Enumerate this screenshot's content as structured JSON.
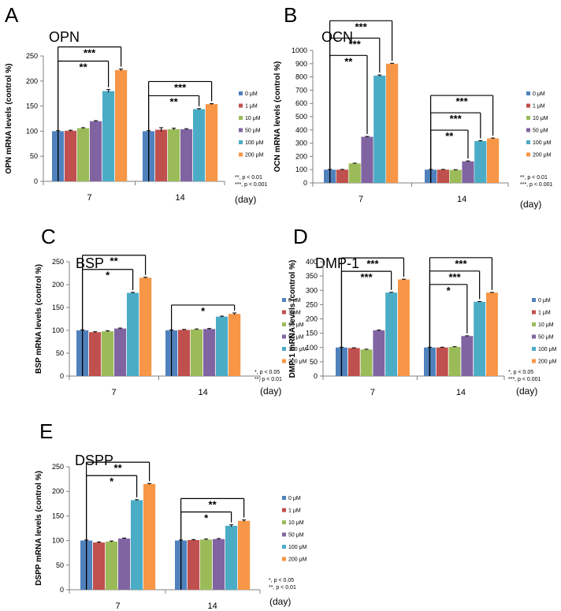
{
  "day_label": "(day)",
  "colors": [
    "#4F81BD",
    "#C0504D",
    "#9BBB59",
    "#8064A2",
    "#4BACC6",
    "#F79646"
  ],
  "chart_data": [
    {
      "type": "bar",
      "panel": "A",
      "title": "OPN",
      "ylabel": "OPN mRNA levels (control %)",
      "xlabel": "(day)",
      "ylim": [
        0,
        250
      ],
      "yticks": [
        0,
        50,
        100,
        150,
        200,
        250
      ],
      "categories": [
        "7",
        "14"
      ],
      "series": [
        {
          "name": "0 μM",
          "values": [
            100,
            100
          ],
          "errors": [
            1,
            1
          ]
        },
        {
          "name": "1 μM",
          "values": [
            101,
            103
          ],
          "errors": [
            1,
            4
          ]
        },
        {
          "name": "10 μM",
          "values": [
            106,
            104
          ],
          "errors": [
            1,
            2
          ]
        },
        {
          "name": "50 μM",
          "values": [
            120,
            104
          ],
          "errors": [
            1,
            1
          ]
        },
        {
          "name": "100 μM",
          "values": [
            180,
            144
          ],
          "errors": [
            3,
            1
          ]
        },
        {
          "name": "200 μM",
          "values": [
            222,
            154
          ],
          "errors": [
            2,
            1
          ]
        }
      ],
      "significance": [
        {
          "group": 0,
          "from": 0,
          "to": 5,
          "label": "***"
        },
        {
          "group": 0,
          "from": 0,
          "to": 4,
          "label": "**"
        },
        {
          "group": 1,
          "from": 0,
          "to": 5,
          "label": "***"
        },
        {
          "group": 1,
          "from": 0,
          "to": 4,
          "label": "**"
        }
      ],
      "notes": [
        "**, p < 0.01",
        "***, p < 0.001"
      ]
    },
    {
      "type": "bar",
      "panel": "B",
      "title": "OCN",
      "ylabel": "OCN mRNA levels (control %)",
      "xlabel": "(day)",
      "ylim": [
        0,
        1000
      ],
      "yticks": [
        0,
        100,
        200,
        300,
        400,
        500,
        600,
        700,
        800,
        900,
        1000
      ],
      "categories": [
        "7",
        "14"
      ],
      "series": [
        {
          "name": "0 μM",
          "values": [
            100,
            100
          ],
          "errors": [
            2,
            2
          ]
        },
        {
          "name": "1 μM",
          "values": [
            100,
            100
          ],
          "errors": [
            2,
            2
          ]
        },
        {
          "name": "10 μM",
          "values": [
            147,
            98
          ],
          "errors": [
            2,
            2
          ]
        },
        {
          "name": "50 μM",
          "values": [
            348,
            163
          ],
          "errors": [
            3,
            3
          ]
        },
        {
          "name": "100 μM",
          "values": [
            810,
            316
          ],
          "errors": [
            5,
            3
          ]
        },
        {
          "name": "200 μM",
          "values": [
            900,
            336
          ],
          "errors": [
            3,
            3
          ]
        }
      ],
      "significance": [
        {
          "group": 0,
          "from": 0,
          "to": 5,
          "label": "***"
        },
        {
          "group": 0,
          "from": 0,
          "to": 4,
          "label": "***"
        },
        {
          "group": 0,
          "from": 0,
          "to": 3,
          "label": "**"
        },
        {
          "group": 1,
          "from": 0,
          "to": 5,
          "label": "***"
        },
        {
          "group": 1,
          "from": 0,
          "to": 4,
          "label": "***"
        },
        {
          "group": 1,
          "from": 0,
          "to": 3,
          "label": "**"
        }
      ],
      "notes": [
        "**, p < 0.01",
        "***, p < 0.001"
      ]
    },
    {
      "type": "bar",
      "panel": "C",
      "title": "BSP",
      "ylabel": "BSP mRNA levels (control %)",
      "xlabel": "(day)",
      "ylim": [
        0,
        250
      ],
      "yticks": [
        0,
        50,
        100,
        150,
        200,
        250
      ],
      "categories": [
        "7",
        "14"
      ],
      "series": [
        {
          "name": "0 μM",
          "values": [
            100,
            100
          ],
          "errors": [
            1,
            1
          ]
        },
        {
          "name": "1 μM",
          "values": [
            96,
            101
          ],
          "errors": [
            1,
            1
          ]
        },
        {
          "name": "10 μM",
          "values": [
            98,
            102
          ],
          "errors": [
            1,
            1
          ]
        },
        {
          "name": "50 μM",
          "values": [
            104,
            103
          ],
          "errors": [
            1,
            1
          ]
        },
        {
          "name": "100 μM",
          "values": [
            182,
            130
          ],
          "errors": [
            1,
            1
          ]
        },
        {
          "name": "200 μM",
          "values": [
            215,
            136
          ],
          "errors": [
            1,
            2
          ]
        }
      ],
      "significance": [
        {
          "group": 0,
          "from": 0,
          "to": 5,
          "label": "**"
        },
        {
          "group": 0,
          "from": 0,
          "to": 4,
          "label": "*"
        },
        {
          "group": 1,
          "from": 0,
          "to": 5,
          "label": "*"
        }
      ],
      "notes": [
        "*, p < 0.05",
        "**, p < 0.01"
      ]
    },
    {
      "type": "bar",
      "panel": "D",
      "title": "DMP-1",
      "ylabel": "DMP-1 mRNA levels (control %)",
      "xlabel": "(day)",
      "ylim": [
        0,
        400
      ],
      "yticks": [
        0,
        50,
        100,
        150,
        200,
        250,
        300,
        350,
        400
      ],
      "categories": [
        "7",
        "14"
      ],
      "series": [
        {
          "name": "0 μM",
          "values": [
            100,
            100
          ],
          "errors": [
            1,
            1
          ]
        },
        {
          "name": "1 μM",
          "values": [
            98,
            100
          ],
          "errors": [
            1,
            1
          ]
        },
        {
          "name": "10 μM",
          "values": [
            93,
            102
          ],
          "errors": [
            1,
            1
          ]
        },
        {
          "name": "50 μM",
          "values": [
            160,
            140
          ],
          "errors": [
            1,
            1
          ]
        },
        {
          "name": "100 μM",
          "values": [
            292,
            260
          ],
          "errors": [
            1,
            1
          ]
        },
        {
          "name": "200 μM",
          "values": [
            338,
            292
          ],
          "errors": [
            1,
            1
          ]
        }
      ],
      "significance": [
        {
          "group": 0,
          "from": 0,
          "to": 5,
          "label": "***"
        },
        {
          "group": 0,
          "from": 0,
          "to": 4,
          "label": "***"
        },
        {
          "group": 1,
          "from": 0,
          "to": 5,
          "label": "***"
        },
        {
          "group": 1,
          "from": 0,
          "to": 4,
          "label": "***"
        },
        {
          "group": 1,
          "from": 0,
          "to": 3,
          "label": "*"
        }
      ],
      "notes": [
        "*, p < 0.05",
        "***, p < 0.001"
      ]
    },
    {
      "type": "bar",
      "panel": "E",
      "title": "DSPP",
      "ylabel": "DSPP mRNA levels (control %)",
      "xlabel": "(day)",
      "ylim": [
        0,
        250
      ],
      "yticks": [
        0,
        50,
        100,
        150,
        200,
        250
      ],
      "categories": [
        "7",
        "14"
      ],
      "series": [
        {
          "name": "0 μM",
          "values": [
            100,
            100
          ],
          "errors": [
            1,
            1
          ]
        },
        {
          "name": "1 μM",
          "values": [
            96,
            101
          ],
          "errors": [
            1,
            1
          ]
        },
        {
          "name": "10 μM",
          "values": [
            98,
            102
          ],
          "errors": [
            1,
            1
          ]
        },
        {
          "name": "50 μM",
          "values": [
            104,
            103
          ],
          "errors": [
            1,
            1
          ]
        },
        {
          "name": "100 μM",
          "values": [
            182,
            130
          ],
          "errors": [
            1,
            2
          ]
        },
        {
          "name": "200 μM",
          "values": [
            215,
            140
          ],
          "errors": [
            1,
            2
          ]
        }
      ],
      "significance": [
        {
          "group": 0,
          "from": 0,
          "to": 5,
          "label": "**"
        },
        {
          "group": 0,
          "from": 0,
          "to": 4,
          "label": "*"
        },
        {
          "group": 1,
          "from": 0,
          "to": 5,
          "label": "**"
        },
        {
          "group": 1,
          "from": 0,
          "to": 4,
          "label": "*"
        }
      ],
      "notes": [
        "*, p < 0.05",
        "**, p < 0.01"
      ]
    }
  ]
}
